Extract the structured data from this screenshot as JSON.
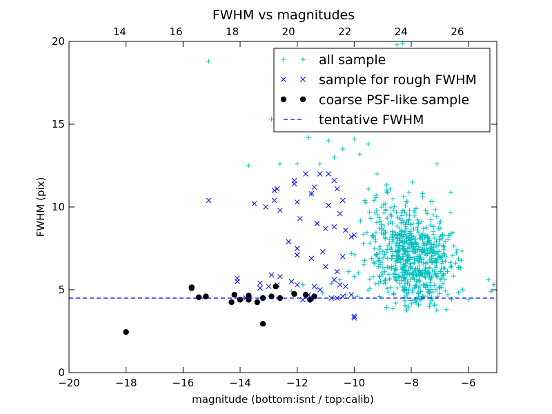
{
  "chart_data": {
    "type": "scatter",
    "title": "FWHM vs magnitudes",
    "xlabel": "magnitude (bottom:isnt / top:calib)",
    "ylabel": "FWHM (pix)",
    "xlim": [
      -20,
      -5
    ],
    "ylim": [
      0,
      20
    ],
    "xticks": [
      "−20",
      "−18",
      "−16",
      "−14",
      "−12",
      "−10",
      "−8",
      "−6"
    ],
    "xtick_values": [
      -20,
      -18,
      -16,
      -14,
      -12,
      -10,
      -8,
      -6
    ],
    "yticks": [
      "0",
      "5",
      "10",
      "15",
      "20"
    ],
    "ytick_values": [
      0,
      5,
      10,
      15,
      20
    ],
    "top_axis": {
      "ticks": [
        "14",
        "16",
        "18",
        "20",
        "22",
        "24",
        "26"
      ],
      "values": [
        14,
        16,
        18,
        20,
        22,
        24,
        26
      ],
      "range": [
        12.2,
        27.4
      ]
    },
    "grid": false,
    "legend_position": "top-right",
    "legend": [
      {
        "label": "all sample",
        "marker": "plus",
        "color": "#00BFBF"
      },
      {
        "label": "sample for rough FWHM",
        "marker": "x",
        "color": "#0000FF"
      },
      {
        "label": "coarse PSF-like sample",
        "marker": "dot",
        "color": "#000000"
      },
      {
        "label": "tentative FWHM",
        "marker": "dash",
        "color": "#0000FF"
      }
    ],
    "tentative_fwhm": 4.5,
    "series": [
      {
        "name": "all sample",
        "color": "#00BFBF",
        "marker": "plus",
        "points": [
          [
            -15.1,
            18.8
          ],
          [
            -13.7,
            12.5
          ],
          [
            -12.9,
            15.3
          ],
          [
            -12.6,
            12.6
          ],
          [
            -12.0,
            12.6
          ],
          [
            -11.5,
            10.8
          ],
          [
            -11.6,
            14.2
          ],
          [
            -11.2,
            12.6
          ],
          [
            -10.9,
            14.0
          ],
          [
            -10.7,
            13.0
          ],
          [
            -10.4,
            13.5
          ],
          [
            -10.0,
            14.1
          ],
          [
            -9.8,
            13.2
          ],
          [
            -9.5,
            13.8
          ],
          [
            -9.2,
            12.0
          ],
          [
            -8.5,
            19.8
          ],
          [
            -8.3,
            19.9
          ],
          [
            -8.7,
            14.9
          ],
          [
            -8.4,
            15.3
          ],
          [
            -7.1,
            12.6
          ],
          [
            -5.1,
            5.3
          ],
          [
            -5.2,
            4.9
          ],
          [
            -5.3,
            5.6
          ],
          [
            -6.0,
            4.4
          ],
          [
            -6.2,
            5.0
          ],
          [
            -11.3,
            5.1
          ],
          [
            -10.8,
            5.4
          ],
          [
            -10.5,
            5.6
          ],
          [
            -10.3,
            4.7
          ],
          [
            -10.2,
            6.1
          ],
          [
            -10.1,
            7.2
          ],
          [
            -9.9,
            4.6
          ],
          [
            -10.0,
            5.8
          ],
          [
            -12.2,
            4.9
          ],
          [
            -11.8,
            5.3
          ],
          [
            -11.1,
            4.8
          ]
        ],
        "cloud": {
          "center": [
            -8.0,
            6.8
          ],
          "x_range": [
            -10.2,
            -6.2
          ],
          "y_range": [
            3.6,
            14.5
          ],
          "count": 700
        }
      },
      {
        "name": "sample for rough FWHM",
        "color": "#0000FF",
        "marker": "x",
        "points": [
          [
            -15.1,
            10.4
          ],
          [
            -13.5,
            10.2
          ],
          [
            -13.1,
            10.0
          ],
          [
            -12.8,
            11.0
          ],
          [
            -12.7,
            11.1
          ],
          [
            -12.8,
            10.4
          ],
          [
            -12.6,
            9.8
          ],
          [
            -12.1,
            11.4
          ],
          [
            -12.1,
            11.6
          ],
          [
            -11.7,
            12.0
          ],
          [
            -11.4,
            11.2
          ],
          [
            -11.2,
            12.0
          ],
          [
            -10.9,
            12.0
          ],
          [
            -10.7,
            11.6
          ],
          [
            -10.6,
            11.1
          ],
          [
            -10.4,
            10.4
          ],
          [
            -10.5,
            9.6
          ],
          [
            -10.9,
            10.1
          ],
          [
            -11.5,
            10.8
          ],
          [
            -12.0,
            10.3
          ],
          [
            -11.3,
            9.0
          ],
          [
            -11.0,
            8.7
          ],
          [
            -10.7,
            8.8
          ],
          [
            -10.3,
            8.6
          ],
          [
            -11.9,
            9.3
          ],
          [
            -12.3,
            7.9
          ],
          [
            -12.0,
            7.5
          ],
          [
            -12.0,
            7.1
          ],
          [
            -11.5,
            6.9
          ],
          [
            -11.1,
            7.3
          ],
          [
            -11.0,
            6.4
          ],
          [
            -10.4,
            7.0
          ],
          [
            -10.1,
            8.2
          ],
          [
            -10.0,
            8.3
          ],
          [
            -10.6,
            6.1
          ],
          [
            -10.7,
            5.6
          ],
          [
            -10.5,
            5.3
          ],
          [
            -10.3,
            5.2
          ],
          [
            -10.4,
            4.6
          ],
          [
            -10.1,
            4.7
          ],
          [
            -10.0,
            3.4
          ],
          [
            -10.0,
            3.3
          ],
          [
            -11.4,
            5.2
          ],
          [
            -11.2,
            5.0
          ],
          [
            -11.6,
            4.7
          ],
          [
            -11.8,
            4.4
          ],
          [
            -12.0,
            5.3
          ],
          [
            -12.2,
            5.5
          ],
          [
            -12.6,
            5.8
          ],
          [
            -12.7,
            5.3
          ],
          [
            -13.0,
            5.2
          ],
          [
            -13.3,
            5.1
          ],
          [
            -13.8,
            4.5
          ],
          [
            -14.1,
            5.5
          ],
          [
            -14.1,
            5.7
          ],
          [
            -13.3,
            5.4
          ],
          [
            -12.9,
            5.9
          ],
          [
            -11.5,
            4.5
          ],
          [
            -10.8,
            4.5
          ],
          [
            -10.6,
            4.5
          ]
        ]
      },
      {
        "name": "coarse PSF-like sample",
        "color": "#000000",
        "marker": "dot",
        "points": [
          [
            -18.0,
            2.45
          ],
          [
            -15.7,
            5.1
          ],
          [
            -15.7,
            5.15
          ],
          [
            -15.45,
            4.55
          ],
          [
            -15.2,
            4.6
          ],
          [
            -14.3,
            4.25
          ],
          [
            -14.2,
            4.7
          ],
          [
            -14.0,
            4.4
          ],
          [
            -13.7,
            4.6
          ],
          [
            -13.7,
            4.65
          ],
          [
            -13.7,
            4.4
          ],
          [
            -13.4,
            4.25
          ],
          [
            -13.2,
            4.5
          ],
          [
            -13.2,
            2.95
          ],
          [
            -12.9,
            4.6
          ],
          [
            -12.75,
            5.2
          ],
          [
            -12.6,
            4.5
          ],
          [
            -12.1,
            4.75
          ],
          [
            -11.7,
            4.7
          ],
          [
            -11.55,
            4.4
          ],
          [
            -11.4,
            4.6
          ]
        ]
      }
    ]
  }
}
